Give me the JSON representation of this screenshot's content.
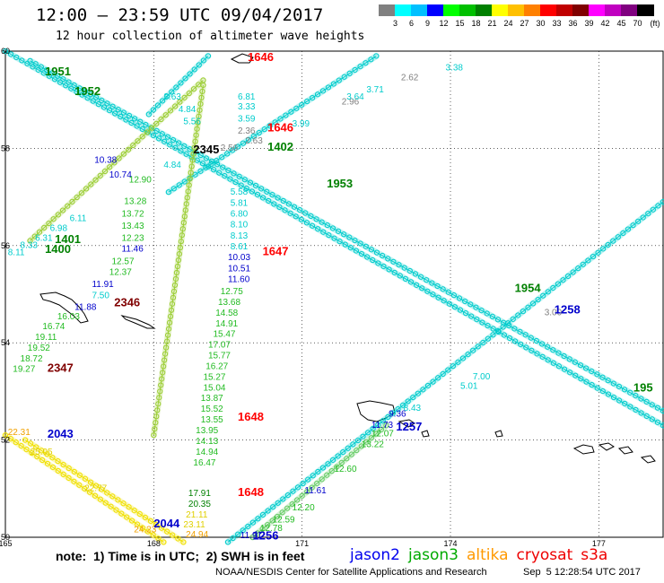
{
  "header": {
    "title": "12:00 – 23:59 UTC 09/04/2017",
    "subtitle": "12 hour collection of altimeter wave heights"
  },
  "legend": {
    "unit": "(ft)",
    "bins": [
      {
        "label": "3",
        "color": "#808080"
      },
      {
        "label": "6",
        "color": "#00ffff"
      },
      {
        "label": "9",
        "color": "#00c0ff"
      },
      {
        "label": "12",
        "color": "#0000ff"
      },
      {
        "label": "15",
        "color": "#00ff00"
      },
      {
        "label": "18",
        "color": "#00c000"
      },
      {
        "label": "21",
        "color": "#008000"
      },
      {
        "label": "24",
        "color": "#ffff00"
      },
      {
        "label": "27",
        "color": "#ffc000"
      },
      {
        "label": "30",
        "color": "#ff8000"
      },
      {
        "label": "33",
        "color": "#ff0000"
      },
      {
        "label": "36",
        "color": "#c00000"
      },
      {
        "label": "39",
        "color": "#800000"
      },
      {
        "label": "42",
        "color": "#ff00ff"
      },
      {
        "label": "45",
        "color": "#c000c0"
      },
      {
        "label": "70",
        "color": "#800080"
      },
      {
        "label": "",
        "color": "#000000"
      }
    ]
  },
  "map": {
    "lon_range": [
      165,
      178.3
    ],
    "lat_range": [
      50,
      60
    ],
    "lon_ticks": [
      "165",
      "168",
      "171",
      "174",
      "177"
    ],
    "lat_ticks": [
      "60",
      "58",
      "56",
      "54",
      "52",
      "50"
    ],
    "grid": true
  },
  "tracks": [
    {
      "id": "t1",
      "color": "#00cccc",
      "from": [
        165.0,
        60.0
      ],
      "to": [
        178.3,
        52.3
      ]
    },
    {
      "id": "t2",
      "color": "#00cccc",
      "from": [
        165.5,
        59.8
      ],
      "to": [
        178.3,
        52.6
      ]
    },
    {
      "id": "t3",
      "color": "#00cccc",
      "from": [
        168.3,
        57.1
      ],
      "to": [
        172.5,
        59.9
      ]
    },
    {
      "id": "t4",
      "color": "#00cccc",
      "from": [
        169.5,
        49.9
      ],
      "to": [
        178.3,
        56.9
      ]
    },
    {
      "id": "t5",
      "color": "#9acd32",
      "from": [
        165.5,
        56.1
      ],
      "to": [
        169.0,
        59.4
      ]
    },
    {
      "id": "t6",
      "color": "#9acd32",
      "from": [
        168.0,
        52.1
      ],
      "to": [
        169.0,
        59.3
      ]
    },
    {
      "id": "t7",
      "color": "#00cccc",
      "from": [
        167.9,
        58.7
      ],
      "to": [
        169.1,
        59.9
      ]
    },
    {
      "id": "t8",
      "color": "#f0e000",
      "from": [
        165.0,
        52.1
      ],
      "to": [
        168.2,
        49.9
      ]
    },
    {
      "id": "t9",
      "color": "#f0e000",
      "from": [
        165.4,
        52.0
      ],
      "to": [
        168.6,
        49.9
      ]
    },
    {
      "id": "t10",
      "color": "#66cc66",
      "from": [
        170.0,
        50.0
      ],
      "to": [
        172.7,
        52.3
      ]
    }
  ],
  "value_labels": [
    {
      "text": "3.63",
      "lon": 168.2,
      "lat": 59.0,
      "color": "#00cccc"
    },
    {
      "text": "4.84",
      "lon": 168.5,
      "lat": 58.75,
      "color": "#00cccc"
    },
    {
      "text": "5.56",
      "lon": 168.6,
      "lat": 58.5,
      "color": "#00cccc"
    },
    {
      "text": "6.81",
      "lon": 169.7,
      "lat": 59.0,
      "color": "#00cccc"
    },
    {
      "text": "3.33",
      "lon": 169.7,
      "lat": 58.8,
      "color": "#00cccc"
    },
    {
      "text": "3.59",
      "lon": 169.7,
      "lat": 58.55,
      "color": "#00cccc"
    },
    {
      "text": "2.36",
      "lon": 169.7,
      "lat": 58.3,
      "color": "#808080"
    },
    {
      "text": "2.63",
      "lon": 169.85,
      "lat": 58.1,
      "color": "#808080"
    },
    {
      "text": "2.56",
      "lon": 169.35,
      "lat": 57.95,
      "color": "#808080"
    },
    {
      "text": "2.96",
      "lon": 171.8,
      "lat": 58.9,
      "color": "#808080"
    },
    {
      "text": "2.62",
      "lon": 173.0,
      "lat": 59.4,
      "color": "#808080"
    },
    {
      "text": "3.38",
      "lon": 173.9,
      "lat": 59.6,
      "color": "#00cccc"
    },
    {
      "text": "3.71",
      "lon": 172.3,
      "lat": 59.15,
      "color": "#00cccc"
    },
    {
      "text": "3.64",
      "lon": 171.9,
      "lat": 59.0,
      "color": "#00cccc"
    },
    {
      "text": "3.99",
      "lon": 170.8,
      "lat": 58.45,
      "color": "#00cccc"
    },
    {
      "text": "4.84",
      "lon": 168.2,
      "lat": 57.6,
      "color": "#00cccc"
    },
    {
      "text": "5.58",
      "lon": 169.55,
      "lat": 57.05,
      "color": "#00cccc"
    },
    {
      "text": "5.81",
      "lon": 169.55,
      "lat": 56.82,
      "color": "#00cccc"
    },
    {
      "text": "6.80",
      "lon": 169.55,
      "lat": 56.6,
      "color": "#00cccc"
    },
    {
      "text": "8.10",
      "lon": 169.55,
      "lat": 56.37,
      "color": "#00cccc"
    },
    {
      "text": "8.13",
      "lon": 169.55,
      "lat": 56.14,
      "color": "#00cccc"
    },
    {
      "text": "8.61",
      "lon": 169.55,
      "lat": 55.92,
      "color": "#00cccc"
    },
    {
      "text": "10.03",
      "lon": 169.5,
      "lat": 55.7,
      "color": "#0000cc"
    },
    {
      "text": "10.51",
      "lon": 169.5,
      "lat": 55.47,
      "color": "#0000cc"
    },
    {
      "text": "11.60",
      "lon": 169.5,
      "lat": 55.25,
      "color": "#0000cc"
    },
    {
      "text": "12.75",
      "lon": 169.35,
      "lat": 55.0,
      "color": "#22bb22"
    },
    {
      "text": "13.68",
      "lon": 169.3,
      "lat": 54.78,
      "color": "#22bb22"
    },
    {
      "text": "14.58",
      "lon": 169.25,
      "lat": 54.56,
      "color": "#22bb22"
    },
    {
      "text": "14.91",
      "lon": 169.25,
      "lat": 54.34,
      "color": "#22bb22"
    },
    {
      "text": "15.47",
      "lon": 169.2,
      "lat": 54.12,
      "color": "#22bb22"
    },
    {
      "text": "17.07",
      "lon": 169.1,
      "lat": 53.9,
      "color": "#22bb22"
    },
    {
      "text": "15.77",
      "lon": 169.1,
      "lat": 53.68,
      "color": "#22bb22"
    },
    {
      "text": "16.27",
      "lon": 169.05,
      "lat": 53.46,
      "color": "#22bb22"
    },
    {
      "text": "15.27",
      "lon": 169.0,
      "lat": 53.24,
      "color": "#22bb22"
    },
    {
      "text": "15.04",
      "lon": 169.0,
      "lat": 53.02,
      "color": "#22bb22"
    },
    {
      "text": "13.87",
      "lon": 168.95,
      "lat": 52.8,
      "color": "#22bb22"
    },
    {
      "text": "15.52",
      "lon": 168.95,
      "lat": 52.58,
      "color": "#22bb22"
    },
    {
      "text": "13.55",
      "lon": 168.95,
      "lat": 52.36,
      "color": "#22bb22"
    },
    {
      "text": "13.95",
      "lon": 168.85,
      "lat": 52.14,
      "color": "#22bb22"
    },
    {
      "text": "14.13",
      "lon": 168.85,
      "lat": 51.92,
      "color": "#22bb22"
    },
    {
      "text": "14.94",
      "lon": 168.85,
      "lat": 51.7,
      "color": "#22bb22"
    },
    {
      "text": "16.47",
      "lon": 168.8,
      "lat": 51.48,
      "color": "#22bb22"
    },
    {
      "text": "17.91",
      "lon": 168.7,
      "lat": 50.85,
      "color": "#008000"
    },
    {
      "text": "20.35",
      "lon": 168.7,
      "lat": 50.63,
      "color": "#008000"
    },
    {
      "text": "21.11",
      "lon": 168.65,
      "lat": 50.41,
      "color": "#e0d000"
    },
    {
      "text": "23.11",
      "lon": 168.6,
      "lat": 50.2,
      "color": "#e0d000"
    },
    {
      "text": "24.94",
      "lon": 168.65,
      "lat": 50.0,
      "color": "#f0a000"
    },
    {
      "text": "10.38",
      "lon": 166.8,
      "lat": 57.7,
      "color": "#0000cc"
    },
    {
      "text": "10.74",
      "lon": 167.1,
      "lat": 57.4,
      "color": "#0000cc"
    },
    {
      "text": "12.90",
      "lon": 167.5,
      "lat": 57.3,
      "color": "#22bb22"
    },
    {
      "text": "13.28",
      "lon": 167.4,
      "lat": 56.85,
      "color": "#22bb22"
    },
    {
      "text": "13.72",
      "lon": 167.35,
      "lat": 56.6,
      "color": "#22bb22"
    },
    {
      "text": "13.43",
      "lon": 167.35,
      "lat": 56.35,
      "color": "#22bb22"
    },
    {
      "text": "12.23",
      "lon": 167.35,
      "lat": 56.1,
      "color": "#22bb22"
    },
    {
      "text": "11.46",
      "lon": 167.35,
      "lat": 55.88,
      "color": "#0000cc"
    },
    {
      "text": "12.57",
      "lon": 167.15,
      "lat": 55.62,
      "color": "#22bb22"
    },
    {
      "text": "12.37",
      "lon": 167.1,
      "lat": 55.4,
      "color": "#22bb22"
    },
    {
      "text": "11.91",
      "lon": 166.75,
      "lat": 55.15,
      "color": "#0000cc"
    },
    {
      "text": "7.50",
      "lon": 166.75,
      "lat": 54.92,
      "color": "#00cccc"
    },
    {
      "text": "11.88",
      "lon": 166.4,
      "lat": 54.68,
      "color": "#0000cc"
    },
    {
      "text": "16.03",
      "lon": 166.05,
      "lat": 54.48,
      "color": "#22bb22"
    },
    {
      "text": "16.74",
      "lon": 165.75,
      "lat": 54.28,
      "color": "#22bb22"
    },
    {
      "text": "19.11",
      "lon": 165.6,
      "lat": 54.06,
      "color": "#22bb22"
    },
    {
      "text": "19.52",
      "lon": 165.45,
      "lat": 53.84,
      "color": "#22bb22"
    },
    {
      "text": "18.72",
      "lon": 165.3,
      "lat": 53.62,
      "color": "#22bb22"
    },
    {
      "text": "19.27",
      "lon": 165.15,
      "lat": 53.4,
      "color": "#22bb22"
    },
    {
      "text": "6.98",
      "lon": 165.9,
      "lat": 56.3,
      "color": "#00cccc"
    },
    {
      "text": "6.31",
      "lon": 165.6,
      "lat": 56.1,
      "color": "#00cccc"
    },
    {
      "text": "8.33",
      "lon": 165.3,
      "lat": 55.95,
      "color": "#00cccc"
    },
    {
      "text": "8.11",
      "lon": 165.05,
      "lat": 55.8,
      "color": "#00cccc"
    },
    {
      "text": "6.11",
      "lon": 166.3,
      "lat": 56.5,
      "color": "#00cccc"
    },
    {
      "text": "3.00",
      "lon": 175.9,
      "lat": 54.57,
      "color": "#808080"
    },
    {
      "text": "5.01",
      "lon": 174.2,
      "lat": 53.05,
      "color": "#00cccc"
    },
    {
      "text": "7.00",
      "lon": 174.45,
      "lat": 53.25,
      "color": "#00cccc"
    },
    {
      "text": "8.43",
      "lon": 173.05,
      "lat": 52.6,
      "color": "#00cccc"
    },
    {
      "text": "9.36",
      "lon": 172.75,
      "lat": 52.48,
      "color": "#0000cc"
    },
    {
      "text": "11.73",
      "lon": 172.4,
      "lat": 52.25,
      "color": "#0000cc"
    },
    {
      "text": "12.07",
      "lon": 172.4,
      "lat": 52.08,
      "color": "#22bb22"
    },
    {
      "text": "13.22",
      "lon": 172.2,
      "lat": 51.85,
      "color": "#22bb22"
    },
    {
      "text": "12.60",
      "lon": 171.65,
      "lat": 51.35,
      "color": "#22bb22"
    },
    {
      "text": "11.61",
      "lon": 171.05,
      "lat": 50.9,
      "color": "#0000cc"
    },
    {
      "text": "12.20",
      "lon": 170.8,
      "lat": 50.55,
      "color": "#22bb22"
    },
    {
      "text": "12.59",
      "lon": 170.4,
      "lat": 50.3,
      "color": "#22bb22"
    },
    {
      "text": "12.78",
      "lon": 170.15,
      "lat": 50.13,
      "color": "#22bb22"
    },
    {
      "text": "11.91",
      "lon": 169.75,
      "lat": 49.98,
      "color": "#0000cc"
    },
    {
      "text": "22.31",
      "lon": 165.05,
      "lat": 52.1,
      "color": "#f0a000"
    },
    {
      "text": "25.05",
      "lon": 165.5,
      "lat": 51.7,
      "color": "#e0d000"
    },
    {
      "text": "22.77",
      "lon": 166.6,
      "lat": 50.95,
      "color": "#e0d000"
    },
    {
      "text": "24.23",
      "lon": 167.6,
      "lat": 50.1,
      "color": "#f0a000"
    }
  ],
  "time_labels": [
    {
      "text": "1646",
      "lon": 169.9,
      "lat": 59.8,
      "color": "#ff0000"
    },
    {
      "text": "1646",
      "lon": 170.3,
      "lat": 58.35,
      "color": "#ff0000"
    },
    {
      "text": "1402",
      "lon": 170.3,
      "lat": 57.95,
      "color": "#008000"
    },
    {
      "text": "2345",
      "lon": 168.8,
      "lat": 57.9,
      "color": "#000000"
    },
    {
      "text": "1647",
      "lon": 170.2,
      "lat": 55.8,
      "color": "#ff0000"
    },
    {
      "text": "1648",
      "lon": 169.7,
      "lat": 52.4,
      "color": "#ff0000"
    },
    {
      "text": "1648",
      "lon": 169.7,
      "lat": 50.85,
      "color": "#ff0000"
    },
    {
      "text": "2044",
      "lon": 168.0,
      "lat": 50.2,
      "color": "#0000cc"
    },
    {
      "text": "1256",
      "lon": 170.0,
      "lat": 49.95,
      "color": "#0000cc"
    },
    {
      "text": "1257",
      "lon": 172.9,
      "lat": 52.2,
      "color": "#0000cc"
    },
    {
      "text": "1258",
      "lon": 176.1,
      "lat": 54.6,
      "color": "#0000cc"
    },
    {
      "text": "1954",
      "lon": 175.3,
      "lat": 55.05,
      "color": "#008000"
    },
    {
      "text": "1953",
      "lon": 171.5,
      "lat": 57.2,
      "color": "#008000"
    },
    {
      "text": "1401",
      "lon": 166.0,
      "lat": 56.05,
      "color": "#008000"
    },
    {
      "text": "1400",
      "lon": 165.8,
      "lat": 55.85,
      "color": "#008000"
    },
    {
      "text": "2346",
      "lon": 167.2,
      "lat": 54.75,
      "color": "#800000"
    },
    {
      "text": "2347",
      "lon": 165.85,
      "lat": 53.4,
      "color": "#800000"
    },
    {
      "text": "2043",
      "lon": 165.85,
      "lat": 52.05,
      "color": "#0000cc"
    },
    {
      "text": "1952",
      "lon": 166.4,
      "lat": 59.1,
      "color": "#008000"
    },
    {
      "text": "1951",
      "lon": 165.8,
      "lat": 59.5,
      "color": "#008000"
    },
    {
      "text": "195",
      "lon": 177.7,
      "lat": 53.0,
      "color": "#008000"
    }
  ],
  "footer": {
    "note": "note:  1) Time is in UTC;  2) SWH is in feet",
    "missions": [
      {
        "name": "jason2",
        "color": "#0000ee"
      },
      {
        "name": "jason3",
        "color": "#00aa00"
      },
      {
        "name": "altika",
        "color": "#ff9900"
      },
      {
        "name": "cryosat",
        "color": "#ee0000"
      },
      {
        "name": "s3a",
        "color": "#ee0000"
      }
    ],
    "credit": "NOAA/NESDIS Center for Satellite Applications and Research",
    "timestamp": "Sep  5 12:28:54 UTC 2017"
  }
}
